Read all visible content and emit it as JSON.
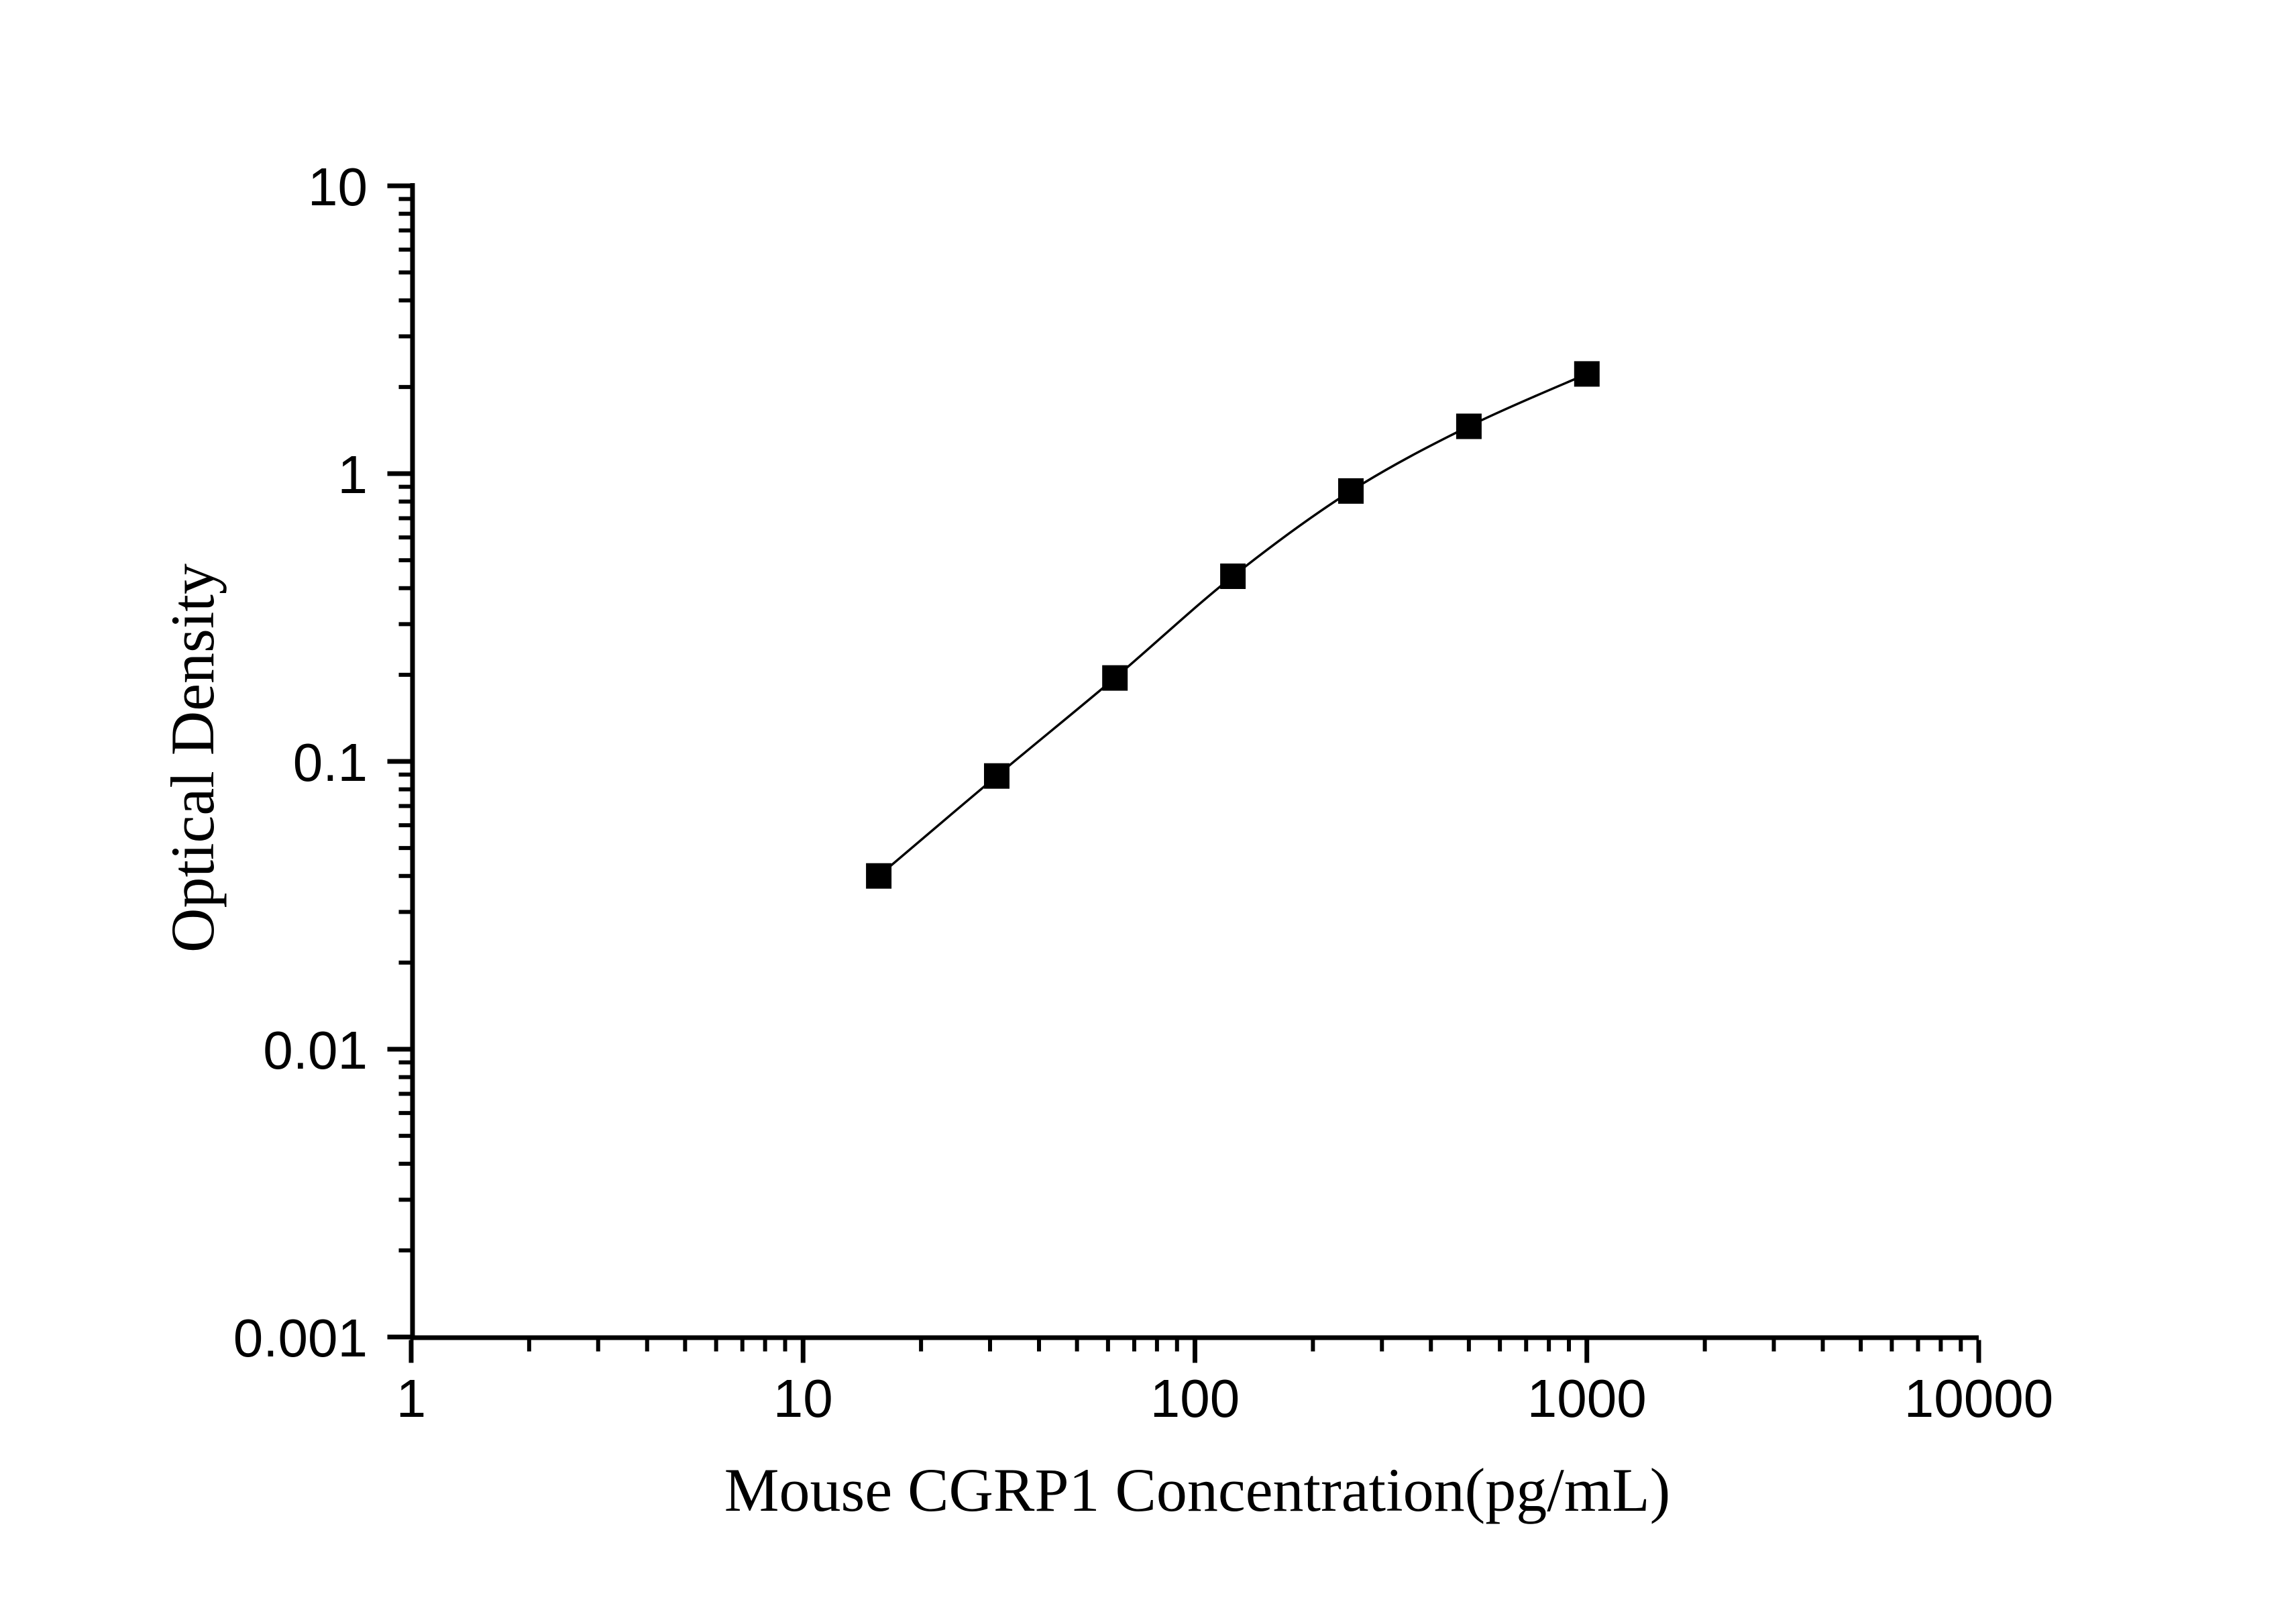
{
  "figure": {
    "background_color": "#ffffff",
    "ink_color": "#000000"
  },
  "chart_data": {
    "type": "scatter",
    "subtype": "line-with-markers",
    "title": "",
    "xlabel": "Mouse CGRP1 Concentration(pg/mL)",
    "ylabel": "Optical Density",
    "x_scale": "log",
    "y_scale": "log",
    "xlim": [
      1,
      10000
    ],
    "ylim": [
      0.001,
      10
    ],
    "x_major_ticks": [
      1,
      10,
      100,
      1000,
      10000
    ],
    "x_tick_labels": [
      "1",
      "10",
      "100",
      "1000",
      "10000"
    ],
    "y_major_ticks": [
      10,
      1,
      0.1,
      0.01,
      0.001
    ],
    "y_tick_labels": [
      "10",
      "1",
      "0.1",
      "0.01",
      "0.001"
    ],
    "minor_ticks": "log-decades-2-through-9",
    "grid": false,
    "legend": "none",
    "series": [
      {
        "marker": "filled-square",
        "marker_color": "#000000",
        "line_color": "#000000",
        "x": [
          15.6,
          31.2,
          62.5,
          125,
          250,
          500,
          1000
        ],
        "y": [
          0.04,
          0.089,
          0.195,
          0.44,
          0.87,
          1.46,
          2.22
        ]
      }
    ]
  }
}
